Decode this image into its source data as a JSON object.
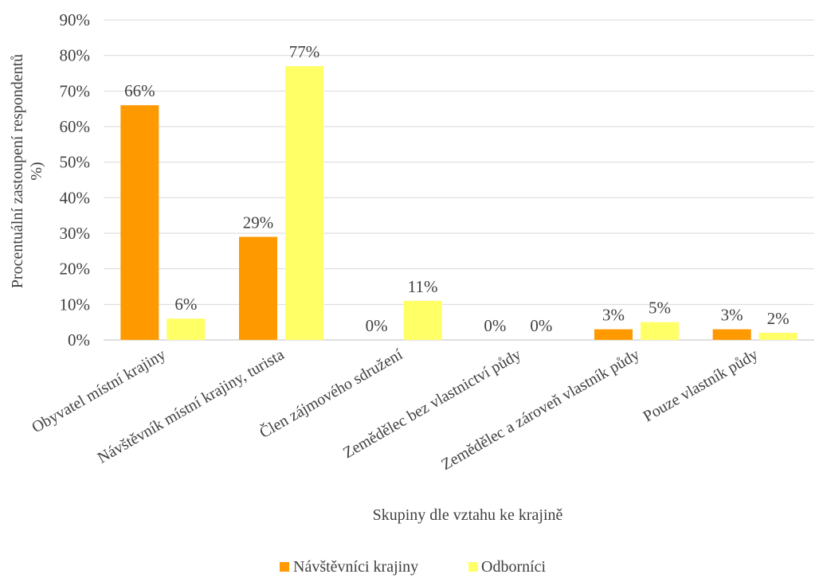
{
  "chart_data": {
    "type": "bar",
    "title": "",
    "xlabel": "Skupiny dle vztahu ke krajině",
    "ylabel_line1": "Procentuální zastoupení respondentů",
    "ylabel_line2": "%)",
    "ylim": [
      0,
      90
    ],
    "ytick_step": 10,
    "y_tick_labels": [
      "0%",
      "10%",
      "20%",
      "30%",
      "40%",
      "50%",
      "60%",
      "70%",
      "80%",
      "90%"
    ],
    "grid": true,
    "legend_position": "bottom",
    "categories": [
      "Obyvatel místní krajiny",
      "Návštěvník místní krajiny, turista",
      "Člen zájmového sdružení",
      "Zemědělec bez vlastnictví půdy",
      "Zemědělec a zároveň vlastník půdy",
      "Pouze vlastník půdy"
    ],
    "series": [
      {
        "name": "Návštěvníci krajiny",
        "color": "#ff9900",
        "values": [
          66,
          29,
          0,
          0,
          3,
          3
        ],
        "labels": [
          "66%",
          "29%",
          "0%",
          "0%",
          "3%",
          "3%"
        ]
      },
      {
        "name": "Odborníci",
        "color": "#ffff66",
        "values": [
          6,
          77,
          11,
          0,
          5,
          2
        ],
        "labels": [
          "6%",
          "77%",
          "11%",
          "0%",
          "5%",
          "2%"
        ]
      }
    ]
  }
}
